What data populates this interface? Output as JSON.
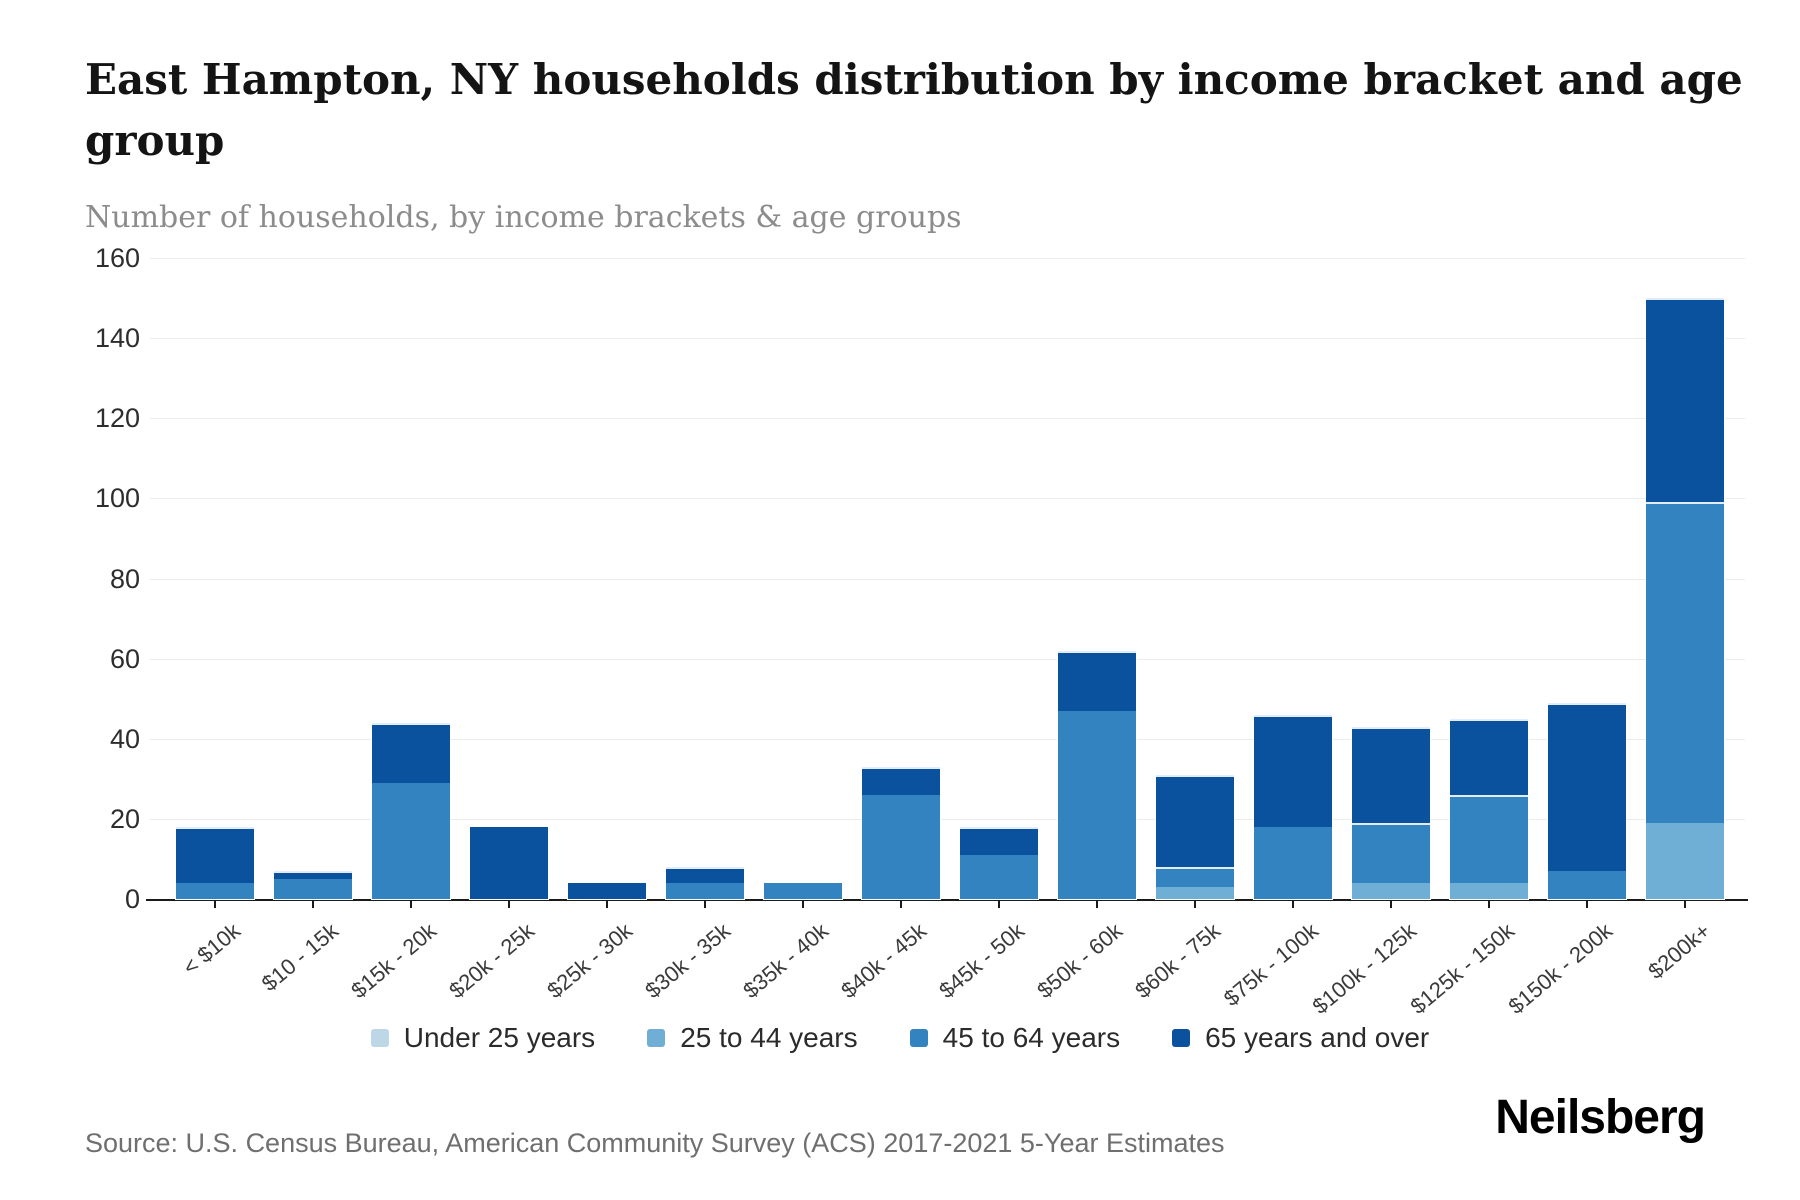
{
  "header": {
    "title": "East Hampton, NY households distribution by income bracket and age group",
    "subtitle": "Number of households, by income brackets & age groups"
  },
  "chart_data": {
    "type": "bar",
    "stacked": true,
    "grid": true,
    "legend_position": "bottom",
    "ylim": [
      0,
      160
    ],
    "ytick_step": 20,
    "xlabel": "",
    "ylabel": "",
    "title": "East Hampton, NY households distribution by income bracket and age group",
    "categories": [
      "< $10k",
      "$10 - 15k",
      "$15k - 20k",
      "$20k - 25k",
      "$25k - 30k",
      "$30k - 35k",
      "$35k - 40k",
      "$40k - 45k",
      "$45k - 50k",
      "$50k - 60k",
      "$60k - 75k",
      "$75k - 100k",
      "$100k - 125k",
      "$125k - 150k",
      "$150k - 200k",
      "$200k+"
    ],
    "series": [
      {
        "name": "Under 25 years",
        "color": "#bdd7e7",
        "values": [
          0,
          0,
          0,
          0,
          0,
          0,
          0,
          0,
          0,
          0,
          0,
          0,
          0,
          0,
          0,
          0
        ]
      },
      {
        "name": "25 to 44 years",
        "color": "#6fafd6",
        "values": [
          0,
          0,
          0,
          0,
          0,
          0,
          0,
          0,
          0,
          0,
          3,
          0,
          4,
          4,
          0,
          19
        ]
      },
      {
        "name": "45 to 64 years",
        "color": "#3383c0",
        "values": [
          4,
          5,
          29,
          0,
          0,
          4,
          4,
          26,
          11,
          47,
          5,
          18,
          15,
          22,
          7,
          80
        ]
      },
      {
        "name": "65 years and over",
        "color": "#0b529e",
        "values": [
          14,
          2,
          15,
          18,
          4,
          4,
          0,
          7,
          7,
          15,
          23,
          28,
          24,
          19,
          42,
          51
        ]
      }
    ],
    "totals": [
      18,
      7,
      44,
      18,
      4,
      8,
      4,
      33,
      18,
      62,
      31,
      46,
      43,
      45,
      49,
      150
    ]
  },
  "footer": {
    "source": "Source: U.S. Census Bureau, American Community Survey (ACS) 2017-2021 5-Year Estimates",
    "logo": "Neilsberg"
  }
}
